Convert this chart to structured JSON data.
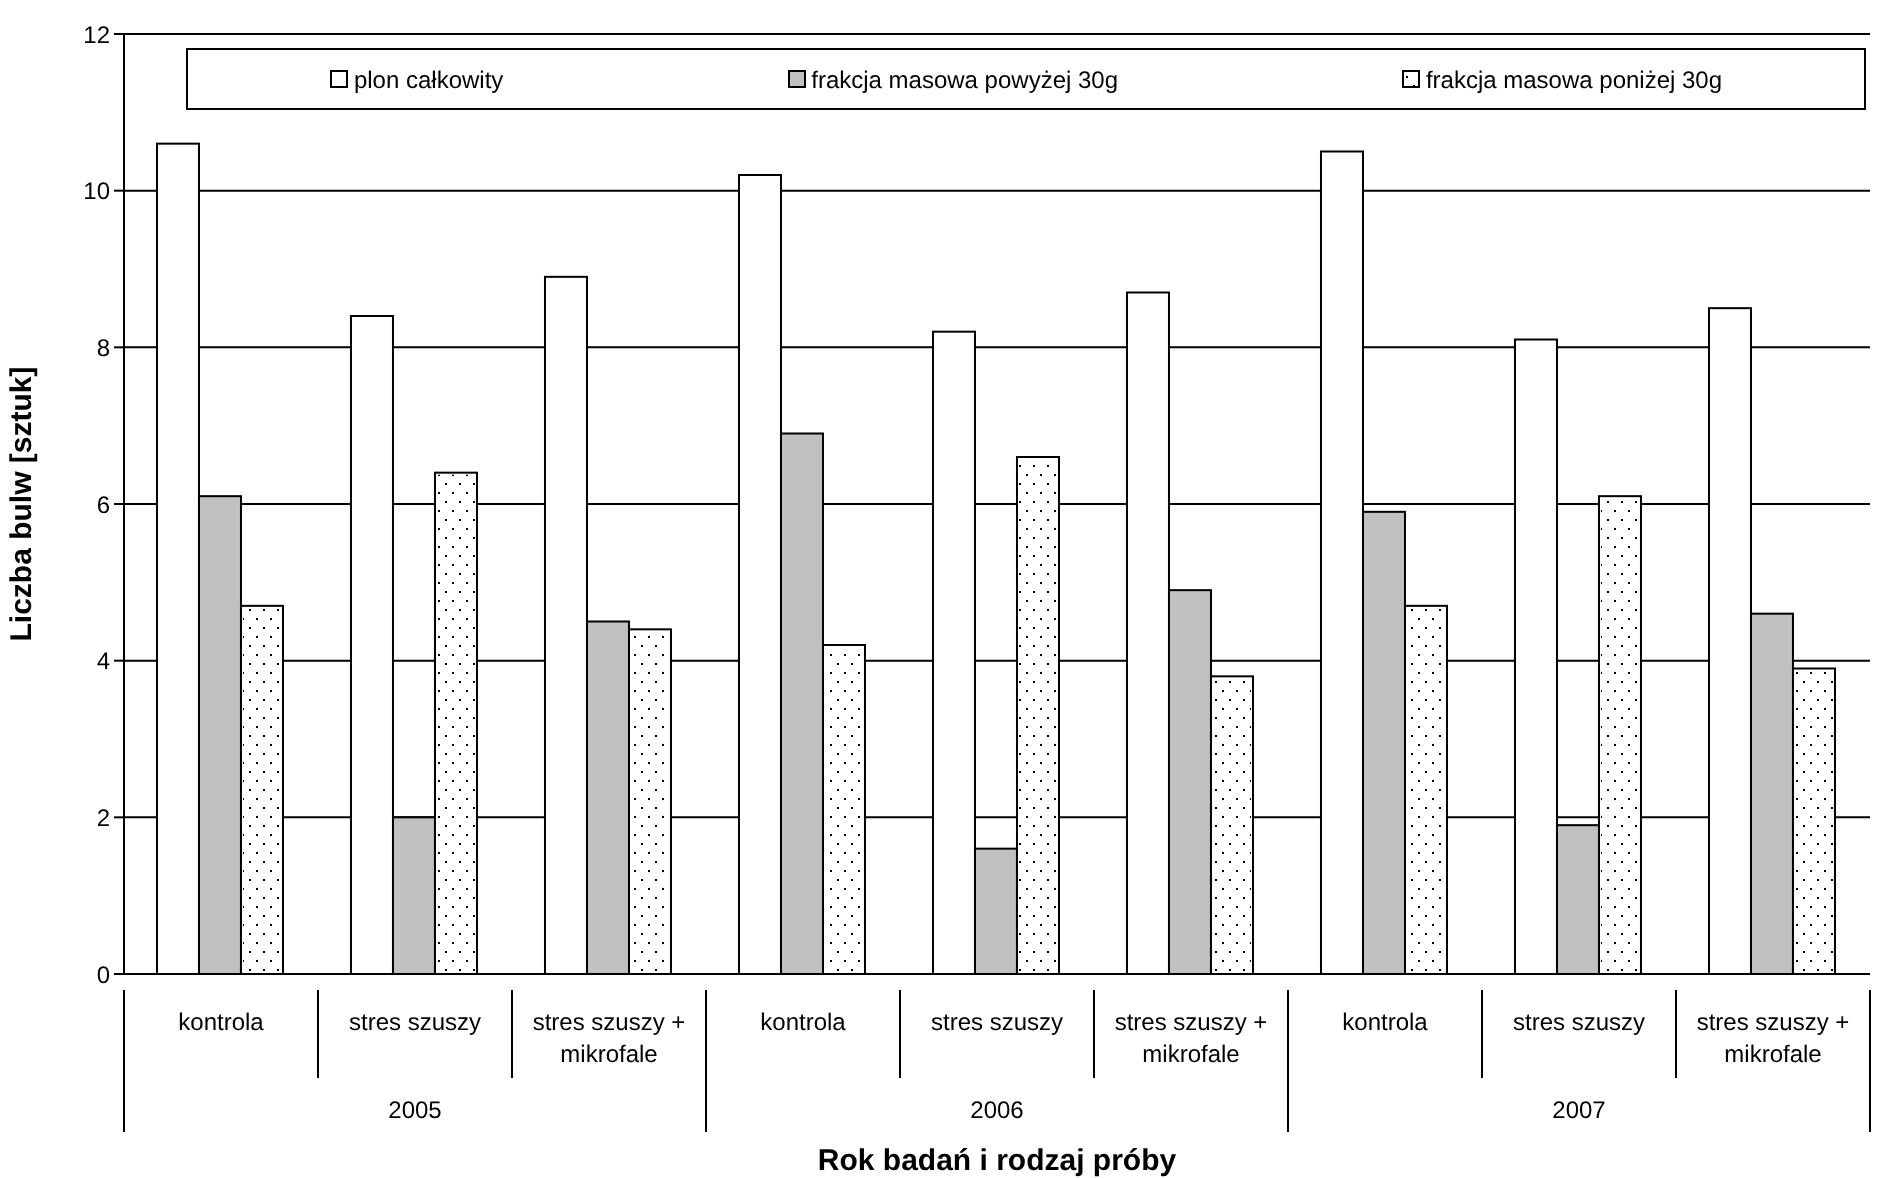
{
  "chart_data": {
    "type": "bar",
    "xlabel": "Rok badań i rodzaj próby",
    "ylabel": "Liczba bulw [sztuk]",
    "categories": [
      "kontrola",
      "stres szuszy",
      "stres szuszy + mikrofale",
      "kontrola",
      "stres szuszy",
      "stres szuszy + mikrofale",
      "kontrola",
      "stres szuszy",
      "stres szuszy + mikrofale"
    ],
    "annotations": [
      "2005",
      "2006",
      "2007"
    ],
    "series": [
      {
        "name": "plon całkowity",
        "color": "#ffffff",
        "values": [
          10.6,
          8.4,
          8.9,
          10.2,
          8.2,
          8.7,
          10.5,
          8.1,
          8.5
        ]
      },
      {
        "name": "frakcja masowa powyżej 30g",
        "color": "#c0c0c0",
        "values": [
          6.1,
          2.0,
          4.5,
          6.9,
          1.6,
          4.9,
          5.9,
          1.9,
          4.6
        ]
      },
      {
        "name": "frakcja masowa poniżej 30g",
        "color": "#ffffff",
        "values": [
          4.7,
          6.4,
          4.4,
          4.2,
          6.6,
          3.8,
          4.7,
          6.1,
          3.9
        ]
      }
    ],
    "ylim": [
      0,
      12
    ],
    "yticks": [
      0,
      2,
      4,
      6,
      8,
      10,
      12
    ],
    "grid": "y",
    "legend": "top"
  }
}
